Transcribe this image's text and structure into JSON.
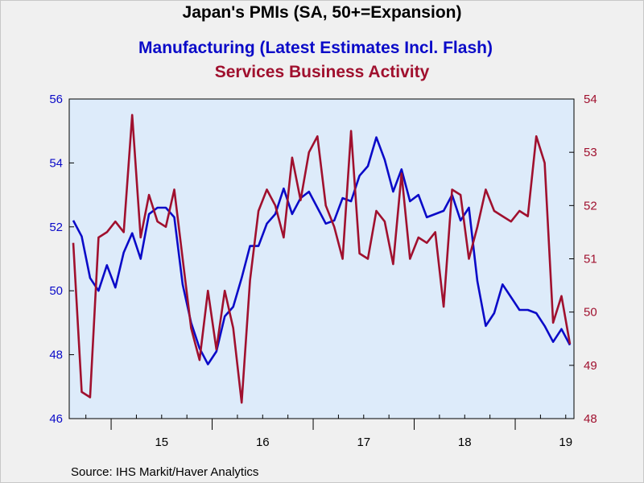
{
  "chart_data": {
    "type": "line",
    "title": "Japan's PMIs (SA, 50+=Expansion)",
    "subtitle_left_axis": "Manufacturing (Latest Estimates Incl. Flash)",
    "subtitle_right_axis": "Services Business Activity",
    "source": "Source:  IHS Markit/Haver Analytics",
    "x_ticks": [
      "15",
      "16",
      "17",
      "18",
      "19"
    ],
    "left_axis": {
      "ylim": [
        46,
        56
      ],
      "ticks": [
        "46",
        "48",
        "50",
        "52",
        "54",
        "56"
      ],
      "color": "#0a0ac8"
    },
    "right_axis": {
      "ylim": [
        48,
        54
      ],
      "ticks": [
        "48",
        "49",
        "50",
        "51",
        "52",
        "53",
        "54"
      ],
      "color": "#a0102e"
    },
    "start_month": "2014-08",
    "series": [
      {
        "name": "Manufacturing (Latest Estimates Incl. Flash)",
        "axis": "left",
        "color": "#0a0ac8",
        "values": [
          52.2,
          51.7,
          50.4,
          50.0,
          50.8,
          50.1,
          51.2,
          51.8,
          51.0,
          52.4,
          52.6,
          52.6,
          52.3,
          50.2,
          49.0,
          48.2,
          47.7,
          48.1,
          49.2,
          49.5,
          50.4,
          51.4,
          51.4,
          52.1,
          52.4,
          53.2,
          52.4,
          52.9,
          53.1,
          52.6,
          52.1,
          52.2,
          52.9,
          52.8,
          53.6,
          53.9,
          54.8,
          54.1,
          53.1,
          53.8,
          52.8,
          53.0,
          52.3,
          52.4,
          52.5,
          53.0,
          52.2,
          52.6,
          50.3,
          48.9,
          49.3,
          50.2,
          49.8,
          49.4,
          49.4,
          49.3,
          48.9,
          48.4,
          48.8,
          48.3
        ]
      },
      {
        "name": "Services Business Activity",
        "axis": "right",
        "color": "#a0102e",
        "values": [
          51.3,
          48.5,
          48.4,
          51.4,
          51.5,
          51.7,
          51.5,
          53.7,
          51.4,
          52.2,
          51.7,
          51.6,
          52.3,
          51.0,
          49.7,
          49.1,
          50.4,
          49.3,
          50.4,
          49.7,
          48.3,
          50.6,
          51.9,
          52.3,
          52.0,
          51.4,
          52.9,
          52.1,
          53.0,
          53.3,
          52.0,
          51.6,
          51.0,
          53.4,
          51.1,
          51.0,
          51.9,
          51.7,
          50.9,
          52.6,
          51.0,
          51.4,
          51.3,
          51.5,
          50.1,
          52.3,
          52.2,
          51.0,
          51.6,
          52.3,
          51.9,
          51.8,
          51.7,
          51.9,
          51.8,
          53.3,
          52.8,
          49.8,
          50.3,
          49.4
        ]
      }
    ]
  }
}
